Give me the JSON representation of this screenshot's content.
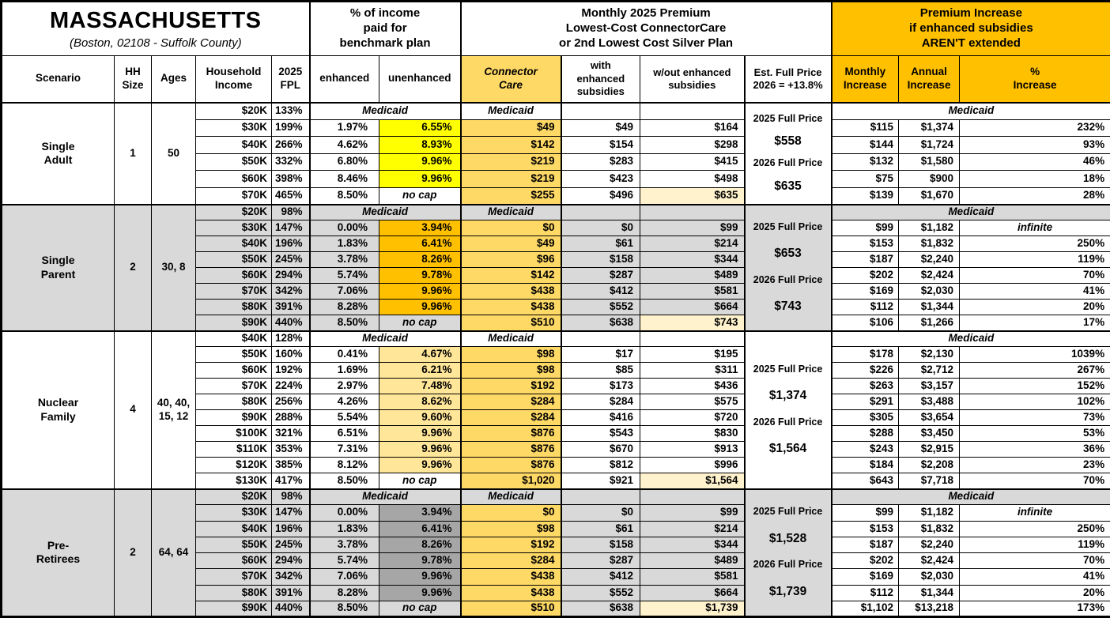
{
  "title": {
    "state": "MASSACHUSETTS",
    "location": "(Boston, 02108 - Suffolk County)"
  },
  "header_groups": {
    "income_pct": "% of income\npaid for\nbenchmark plan",
    "premium": "Monthly 2025 Premium\nLowest-Cost ConnectorCare\nor 2nd Lowest Cost Silver Plan",
    "increase": "Premium Increase\nif enhanced subsidies\nAREN'T extended"
  },
  "columns": {
    "scenario": "Scenario",
    "hh_size": "HH\nSize",
    "ages": "Ages",
    "income": "Household\nIncome",
    "fpl": "2025\nFPL",
    "enhanced": "enhanced",
    "unenhanced": "unenhanced",
    "cc": "Connector\nCare",
    "with_es": "with\nenhanced\nsubsidies",
    "wo_es": "w/out enhanced\nsubsidies",
    "full_price": "Est. Full Price\n2026 = +13.8%",
    "monthly": "Monthly\nIncrease",
    "annual": "Annual\nIncrease",
    "pct": "%\nIncrease"
  },
  "labels": {
    "medicaid": "Medicaid",
    "no_cap": "no cap",
    "infinite": "infinite"
  },
  "colors": {
    "amber_header": "#FFC000",
    "connector_gold": "#FFD966",
    "wo_highlight": "#FFF2CC",
    "section_gray": "#D9D9D9",
    "white": "#FFFFFF"
  },
  "scenarios": [
    {
      "name": "Single\nAdult",
      "hh_size": "1",
      "ages": "50",
      "section_bg": "#FFFFFF",
      "unenhanced_bg": "#FFFF00",
      "full_price_lines": [
        "2025 Full Price",
        "$558",
        "2026 Full Price",
        "$635"
      ],
      "rows": [
        {
          "income": "$20K",
          "fpl": "133%",
          "medicaid": true
        },
        {
          "income": "$30K",
          "fpl": "199%",
          "enhanced": "1.97%",
          "unenhanced": "6.55%",
          "cc": "$49",
          "with_es": "$49",
          "wo_es": "$164",
          "monthly": "$115",
          "annual": "$1,374",
          "pct": "232%"
        },
        {
          "income": "$40K",
          "fpl": "266%",
          "enhanced": "4.62%",
          "unenhanced": "8.93%",
          "cc": "$142",
          "with_es": "$154",
          "wo_es": "$298",
          "monthly": "$144",
          "annual": "$1,724",
          "pct": "93%"
        },
        {
          "income": "$50K",
          "fpl": "332%",
          "enhanced": "6.80%",
          "unenhanced": "9.96%",
          "cc": "$219",
          "with_es": "$283",
          "wo_es": "$415",
          "monthly": "$132",
          "annual": "$1,580",
          "pct": "46%"
        },
        {
          "income": "$60K",
          "fpl": "398%",
          "enhanced": "8.46%",
          "unenhanced": "9.96%",
          "cc": "$219",
          "with_es": "$423",
          "wo_es": "$498",
          "monthly": "$75",
          "annual": "$900",
          "pct": "18%"
        },
        {
          "income": "$70K",
          "fpl": "465%",
          "enhanced": "8.50%",
          "unenhanced": "no cap",
          "cc": "$255",
          "with_es": "$496",
          "wo_es": "$635",
          "wo_hl": true,
          "monthly": "$139",
          "annual": "$1,670",
          "pct": "28%"
        }
      ]
    },
    {
      "name": "Single\nParent",
      "hh_size": "2",
      "ages": "30, 8",
      "section_bg": "#D9D9D9",
      "unenhanced_bg": "#FFC000",
      "full_price_lines": [
        "2025 Full Price",
        "$653",
        "2026 Full Price",
        "$743"
      ],
      "rows": [
        {
          "income": "$20K",
          "fpl": "98%",
          "medicaid": true
        },
        {
          "income": "$30K",
          "fpl": "147%",
          "enhanced": "0.00%",
          "unenhanced": "3.94%",
          "cc": "$0",
          "with_es": "$0",
          "wo_es": "$99",
          "monthly": "$99",
          "annual": "$1,182",
          "pct": "infinite"
        },
        {
          "income": "$40K",
          "fpl": "196%",
          "enhanced": "1.83%",
          "unenhanced": "6.41%",
          "cc": "$49",
          "with_es": "$61",
          "wo_es": "$214",
          "monthly": "$153",
          "annual": "$1,832",
          "pct": "250%"
        },
        {
          "income": "$50K",
          "fpl": "245%",
          "enhanced": "3.78%",
          "unenhanced": "8.26%",
          "cc": "$96",
          "with_es": "$158",
          "wo_es": "$344",
          "monthly": "$187",
          "annual": "$2,240",
          "pct": "119%"
        },
        {
          "income": "$60K",
          "fpl": "294%",
          "enhanced": "5.74%",
          "unenhanced": "9.78%",
          "cc": "$142",
          "with_es": "$287",
          "wo_es": "$489",
          "monthly": "$202",
          "annual": "$2,424",
          "pct": "70%"
        },
        {
          "income": "$70K",
          "fpl": "342%",
          "enhanced": "7.06%",
          "unenhanced": "9.96%",
          "cc": "$438",
          "with_es": "$412",
          "wo_es": "$581",
          "monthly": "$169",
          "annual": "$2,030",
          "pct": "41%"
        },
        {
          "income": "$80K",
          "fpl": "391%",
          "enhanced": "8.28%",
          "unenhanced": "9.96%",
          "cc": "$438",
          "with_es": "$552",
          "wo_es": "$664",
          "monthly": "$112",
          "annual": "$1,344",
          "pct": "20%"
        },
        {
          "income": "$90K",
          "fpl": "440%",
          "enhanced": "8.50%",
          "unenhanced": "no cap",
          "cc": "$510",
          "with_es": "$638",
          "wo_es": "$743",
          "wo_hl": true,
          "monthly": "$106",
          "annual": "$1,266",
          "pct": "17%"
        }
      ]
    },
    {
      "name": "Nuclear\nFamily",
      "hh_size": "4",
      "ages": "40, 40,\n15, 12",
      "section_bg": "#FFFFFF",
      "unenhanced_bg": "#FFE699",
      "full_price_lines": [
        "2025 Full Price",
        "$1,374",
        "2026 Full Price",
        "$1,564"
      ],
      "rows": [
        {
          "income": "$40K",
          "fpl": "128%",
          "medicaid": true
        },
        {
          "income": "$50K",
          "fpl": "160%",
          "enhanced": "0.41%",
          "unenhanced": "4.67%",
          "cc": "$98",
          "with_es": "$17",
          "wo_es": "$195",
          "monthly": "$178",
          "annual": "$2,130",
          "pct": "1039%"
        },
        {
          "income": "$60K",
          "fpl": "192%",
          "enhanced": "1.69%",
          "unenhanced": "6.21%",
          "cc": "$98",
          "with_es": "$85",
          "wo_es": "$311",
          "monthly": "$226",
          "annual": "$2,712",
          "pct": "267%"
        },
        {
          "income": "$70K",
          "fpl": "224%",
          "enhanced": "2.97%",
          "unenhanced": "7.48%",
          "cc": "$192",
          "with_es": "$173",
          "wo_es": "$436",
          "monthly": "$263",
          "annual": "$3,157",
          "pct": "152%"
        },
        {
          "income": "$80K",
          "fpl": "256%",
          "enhanced": "4.26%",
          "unenhanced": "8.62%",
          "cc": "$284",
          "with_es": "$284",
          "wo_es": "$575",
          "monthly": "$291",
          "annual": "$3,488",
          "pct": "102%"
        },
        {
          "income": "$90K",
          "fpl": "288%",
          "enhanced": "5.54%",
          "unenhanced": "9.60%",
          "cc": "$284",
          "with_es": "$416",
          "wo_es": "$720",
          "monthly": "$305",
          "annual": "$3,654",
          "pct": "73%"
        },
        {
          "income": "$100K",
          "fpl": "321%",
          "enhanced": "6.51%",
          "unenhanced": "9.96%",
          "cc": "$876",
          "with_es": "$543",
          "wo_es": "$830",
          "monthly": "$288",
          "annual": "$3,450",
          "pct": "53%"
        },
        {
          "income": "$110K",
          "fpl": "353%",
          "enhanced": "7.31%",
          "unenhanced": "9.96%",
          "cc": "$876",
          "with_es": "$670",
          "wo_es": "$913",
          "monthly": "$243",
          "annual": "$2,915",
          "pct": "36%"
        },
        {
          "income": "$120K",
          "fpl": "385%",
          "enhanced": "8.12%",
          "unenhanced": "9.96%",
          "cc": "$876",
          "with_es": "$812",
          "wo_es": "$996",
          "monthly": "$184",
          "annual": "$2,208",
          "pct": "23%"
        },
        {
          "income": "$130K",
          "fpl": "417%",
          "enhanced": "8.50%",
          "unenhanced": "no cap",
          "cc": "$1,020",
          "with_es": "$921",
          "wo_es": "$1,564",
          "wo_hl": true,
          "monthly": "$643",
          "annual": "$7,718",
          "pct": "70%"
        }
      ]
    },
    {
      "name": "Pre-\nRetirees",
      "hh_size": "2",
      "ages": "64, 64",
      "section_bg": "#D9D9D9",
      "unenhanced_bg": "#A6A6A6",
      "full_price_lines": [
        "2025 Full Price",
        "$1,528",
        "2026 Full Price",
        "$1,739"
      ],
      "rows": [
        {
          "income": "$20K",
          "fpl": "98%",
          "medicaid": true
        },
        {
          "income": "$30K",
          "fpl": "147%",
          "enhanced": "0.00%",
          "unenhanced": "3.94%",
          "cc": "$0",
          "with_es": "$0",
          "wo_es": "$99",
          "monthly": "$99",
          "annual": "$1,182",
          "pct": "infinite"
        },
        {
          "income": "$40K",
          "fpl": "196%",
          "enhanced": "1.83%",
          "unenhanced": "6.41%",
          "cc": "$98",
          "with_es": "$61",
          "wo_es": "$214",
          "monthly": "$153",
          "annual": "$1,832",
          "pct": "250%"
        },
        {
          "income": "$50K",
          "fpl": "245%",
          "enhanced": "3.78%",
          "unenhanced": "8.26%",
          "cc": "$192",
          "with_es": "$158",
          "wo_es": "$344",
          "monthly": "$187",
          "annual": "$2,240",
          "pct": "119%"
        },
        {
          "income": "$60K",
          "fpl": "294%",
          "enhanced": "5.74%",
          "unenhanced": "9.78%",
          "cc": "$284",
          "with_es": "$287",
          "wo_es": "$489",
          "monthly": "$202",
          "annual": "$2,424",
          "pct": "70%"
        },
        {
          "income": "$70K",
          "fpl": "342%",
          "enhanced": "7.06%",
          "unenhanced": "9.96%",
          "cc": "$438",
          "with_es": "$412",
          "wo_es": "$581",
          "monthly": "$169",
          "annual": "$2,030",
          "pct": "41%"
        },
        {
          "income": "$80K",
          "fpl": "391%",
          "enhanced": "8.28%",
          "unenhanced": "9.96%",
          "cc": "$438",
          "with_es": "$552",
          "wo_es": "$664",
          "monthly": "$112",
          "annual": "$1,344",
          "pct": "20%"
        },
        {
          "income": "$90K",
          "fpl": "440%",
          "enhanced": "8.50%",
          "unenhanced": "no cap",
          "cc": "$510",
          "with_es": "$638",
          "wo_es": "$1,739",
          "wo_hl": true,
          "monthly": "$1,102",
          "annual": "$13,218",
          "pct": "173%"
        }
      ]
    }
  ]
}
